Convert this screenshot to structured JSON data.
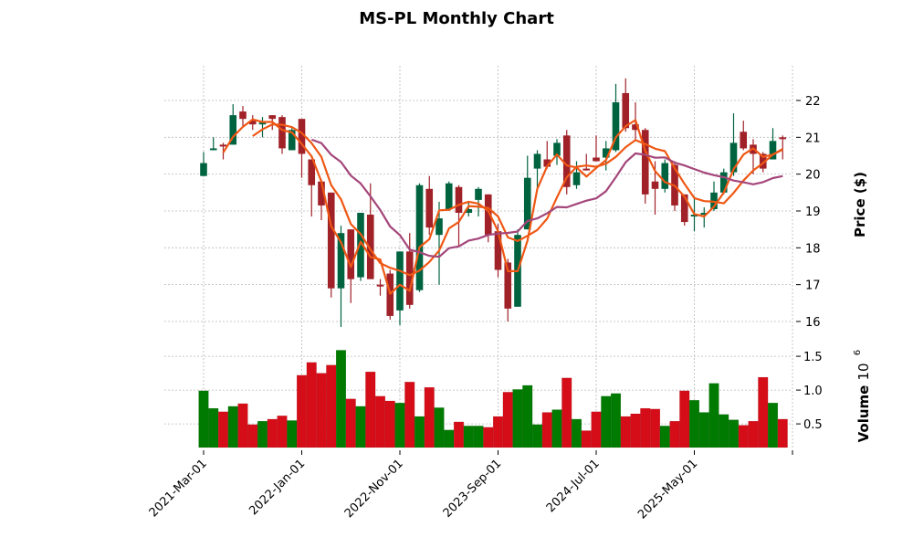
{
  "chart_data": {
    "type": "candlestick",
    "title": "MS-PL Monthly Chart",
    "price_panel": {
      "ylabel": "Price ($)",
      "ylim": [
        15.6,
        23.0
      ],
      "yticks": [
        16,
        17,
        18,
        19,
        20,
        21,
        22
      ],
      "grid": true
    },
    "volume_panel": {
      "ylabel": "Volume",
      "scale_label": "10",
      "scale_exponent": "6",
      "ylim": [
        0.15,
        1.65
      ],
      "yticks": [
        "0.5",
        "1.0",
        "1.5"
      ],
      "ytick_values": [
        0.5,
        1.0,
        1.5
      ],
      "grid": true
    },
    "xtick_labels": [
      "2021-Mar-01",
      "2022-Jan-01",
      "2022-Nov-01",
      "2023-Sep-01",
      "2024-Jul-01",
      "2025-May-01"
    ],
    "xtick_indices": [
      0,
      10,
      20,
      30,
      40,
      50
    ],
    "colors": {
      "up": "#006340",
      "down": "#a02128",
      "vol_up": "#007a00",
      "vol_down": "#d50d18",
      "ma_short": "#ef5714",
      "ma_mid": "#ef5714",
      "ma_long": "#a4467a"
    },
    "moving_averages": [
      {
        "name": "MA3",
        "window": 3
      },
      {
        "name": "MA6",
        "window": 6
      },
      {
        "name": "MA12",
        "window": 12
      }
    ],
    "ohlc": [
      [
        19.95,
        20.6,
        19.95,
        20.3
      ],
      [
        20.65,
        21.0,
        20.65,
        20.7
      ],
      [
        20.8,
        20.85,
        20.4,
        20.75
      ],
      [
        20.8,
        21.9,
        20.8,
        21.6
      ],
      [
        21.7,
        21.85,
        21.3,
        21.5
      ],
      [
        21.45,
        21.6,
        21.2,
        21.35
      ],
      [
        21.35,
        21.55,
        21.0,
        21.4
      ],
      [
        21.6,
        21.6,
        21.2,
        21.5
      ],
      [
        21.55,
        21.6,
        20.55,
        20.7
      ],
      [
        20.65,
        21.25,
        20.65,
        21.2
      ],
      [
        21.5,
        21.5,
        19.9,
        20.55
      ],
      [
        20.4,
        20.4,
        18.85,
        19.7
      ],
      [
        19.8,
        19.85,
        18.75,
        19.15
      ],
      [
        19.5,
        19.5,
        16.65,
        16.9
      ],
      [
        16.9,
        18.6,
        15.85,
        18.4
      ],
      [
        18.5,
        18.5,
        16.5,
        17.15
      ],
      [
        17.2,
        18.95,
        17.1,
        18.95
      ],
      [
        18.9,
        19.75,
        17.15,
        17.15
      ],
      [
        17.0,
        17.15,
        16.7,
        16.95
      ],
      [
        17.3,
        17.4,
        16.05,
        16.15
      ],
      [
        16.3,
        17.9,
        15.9,
        17.9
      ],
      [
        17.9,
        18.4,
        16.35,
        16.45
      ],
      [
        16.85,
        19.75,
        16.8,
        19.7
      ],
      [
        19.6,
        19.95,
        18.35,
        18.55
      ],
      [
        18.35,
        19.25,
        17.0,
        18.8
      ],
      [
        19.05,
        19.8,
        19.0,
        19.75
      ],
      [
        19.65,
        19.7,
        18.05,
        18.95
      ],
      [
        18.95,
        19.25,
        18.85,
        19.05
      ],
      [
        19.3,
        19.65,
        18.85,
        19.6
      ],
      [
        19.45,
        19.45,
        18.15,
        18.35
      ],
      [
        18.45,
        18.65,
        17.2,
        17.4
      ],
      [
        17.6,
        17.7,
        16.0,
        16.35
      ],
      [
        16.4,
        18.5,
        16.4,
        18.35
      ],
      [
        18.5,
        20.5,
        18.5,
        19.9
      ],
      [
        20.15,
        20.65,
        19.6,
        20.55
      ],
      [
        20.4,
        20.9,
        20.15,
        20.2
      ],
      [
        20.5,
        20.95,
        20.25,
        20.85
      ],
      [
        21.05,
        21.2,
        19.45,
        19.65
      ],
      [
        19.7,
        20.35,
        19.6,
        20.05
      ],
      [
        20.15,
        20.55,
        20.1,
        20.1
      ],
      [
        20.45,
        21.05,
        20.35,
        20.35
      ],
      [
        20.45,
        20.9,
        20.1,
        20.7
      ],
      [
        20.65,
        22.45,
        20.6,
        21.95
      ],
      [
        22.2,
        22.6,
        21.15,
        21.25
      ],
      [
        21.35,
        21.95,
        20.9,
        21.2
      ],
      [
        21.2,
        21.25,
        19.2,
        19.45
      ],
      [
        19.8,
        20.35,
        18.9,
        19.6
      ],
      [
        19.6,
        20.4,
        19.5,
        20.3
      ],
      [
        20.25,
        20.35,
        19.0,
        19.15
      ],
      [
        19.45,
        19.45,
        18.6,
        18.7
      ],
      [
        18.85,
        19.4,
        18.45,
        18.9
      ],
      [
        18.9,
        19.1,
        18.55,
        18.95
      ],
      [
        19.05,
        19.8,
        19.0,
        19.5
      ],
      [
        19.5,
        20.15,
        19.45,
        20.05
      ],
      [
        20.05,
        21.65,
        19.95,
        20.85
      ],
      [
        21.15,
        21.45,
        20.65,
        20.7
      ],
      [
        20.8,
        20.95,
        20.0,
        20.55
      ],
      [
        20.55,
        20.6,
        20.05,
        20.15
      ],
      [
        20.4,
        21.25,
        20.4,
        20.9
      ],
      [
        21.0,
        21.05,
        20.4,
        20.95
      ]
    ],
    "volume": [
      0.99,
      0.73,
      0.68,
      0.76,
      0.8,
      0.49,
      0.54,
      0.57,
      0.62,
      0.55,
      1.22,
      1.41,
      1.25,
      1.37,
      1.59,
      0.87,
      0.76,
      1.27,
      0.91,
      0.84,
      0.81,
      1.12,
      0.61,
      1.04,
      0.74,
      0.41,
      0.53,
      0.47,
      0.47,
      0.45,
      0.61,
      0.97,
      1.01,
      1.07,
      0.49,
      0.67,
      0.71,
      1.18,
      0.57,
      0.4,
      0.68,
      0.91,
      0.95,
      0.61,
      0.65,
      0.73,
      0.72,
      0.47,
      0.54,
      0.99,
      0.85,
      0.67,
      1.1,
      0.64,
      0.56,
      0.48,
      0.54,
      1.19,
      0.81,
      0.57
    ]
  }
}
